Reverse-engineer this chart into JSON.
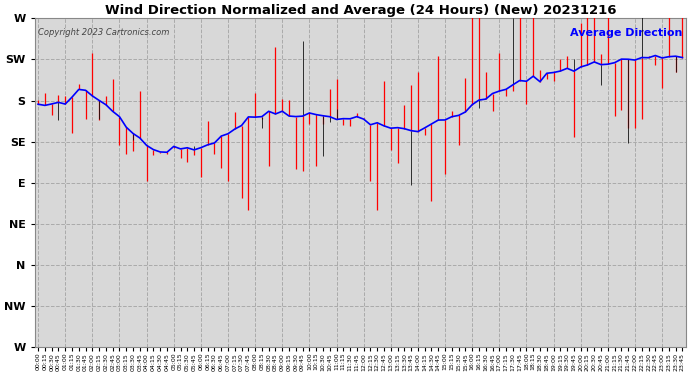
{
  "title": "Wind Direction Normalized and Average (24 Hours) (New) 20231216",
  "copyright": "Copyright 2023 Cartronics.com",
  "legend_label": "Average Direction",
  "background_color": "#ffffff",
  "plot_bg_color": "#d8d8d8",
  "grid_color": "#aaaaaa",
  "title_color": "#000000",
  "copyright_color": "#555555",
  "legend_color": "#0000ff",
  "red_color": "#ff0000",
  "blue_color": "#0000ff",
  "black_color": "#111111",
  "ytick_labels": [
    "W",
    "SW",
    "S",
    "SE",
    "E",
    "NE",
    "N",
    "NW",
    "W"
  ],
  "ytick_values": [
    360,
    315,
    270,
    225,
    180,
    135,
    90,
    45,
    0
  ],
  "ymin": 0,
  "ymax": 360,
  "n_points": 96
}
